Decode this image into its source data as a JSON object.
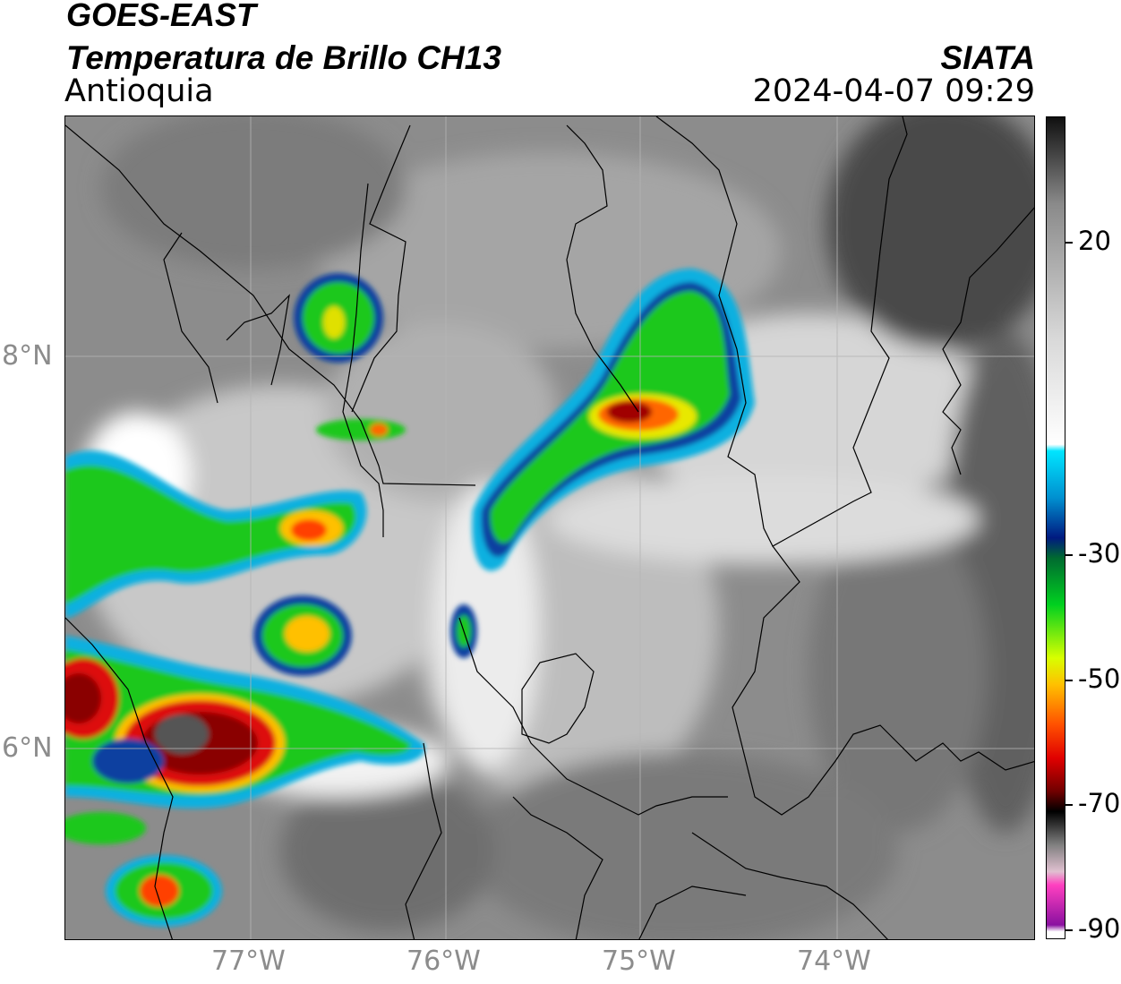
{
  "header": {
    "satellite": "GOES-EAST",
    "product": "Temperatura de Brillo CH13",
    "region": "Antioquia",
    "organization": "SIATA",
    "datetime": "2024-04-07 09:29"
  },
  "map": {
    "lon_labels": [
      "77°W",
      "76°W",
      "75°W",
      "74°W"
    ],
    "lat_labels": [
      "8°N",
      "6°N"
    ],
    "extent": {
      "lon_min": -77.95,
      "lon_max": -73.0,
      "lat_min": 5.0,
      "lat_max": 9.2
    },
    "grid": true
  },
  "colorbar": {
    "labels": [
      "20",
      "-30",
      "-50",
      "-70",
      "-90"
    ],
    "values": [
      20,
      -30,
      -50,
      -70,
      -90
    ],
    "range": [
      -90,
      33
    ],
    "gradient": [
      {
        "v": 33,
        "c": "#101010"
      },
      {
        "v": 20,
        "c": "#8a8a8a"
      },
      {
        "v": 0,
        "c": "#d8d8d8"
      },
      {
        "v": -16,
        "c": "#ffffff"
      },
      {
        "v": -17,
        "c": "#00e5ff"
      },
      {
        "v": -24,
        "c": "#0090d0"
      },
      {
        "v": -30,
        "c": "#001a80"
      },
      {
        "v": -33,
        "c": "#006a30"
      },
      {
        "v": -40,
        "c": "#00d020"
      },
      {
        "v": -48,
        "c": "#d8ff00"
      },
      {
        "v": -52,
        "c": "#ffc000"
      },
      {
        "v": -58,
        "c": "#ff5000"
      },
      {
        "v": -63,
        "c": "#e00000"
      },
      {
        "v": -68,
        "c": "#700000"
      },
      {
        "v": -71,
        "c": "#000000"
      },
      {
        "v": -76,
        "c": "#808080"
      },
      {
        "v": -80,
        "c": "#e0c0d0"
      },
      {
        "v": -82,
        "c": "#ff40c0"
      },
      {
        "v": -88,
        "c": "#8a10a0"
      },
      {
        "v": -89,
        "c": "#ffffff"
      }
    ]
  },
  "colors": {
    "cold_top_green": "#1bd21b",
    "cold_top_yellow": "#e6e600",
    "cold_top_red": "#d81818",
    "cold_top_blue": "#0b3b9e",
    "cold_top_cyan": "#1ad0f0",
    "background_gray": "#8a8a8a"
  }
}
